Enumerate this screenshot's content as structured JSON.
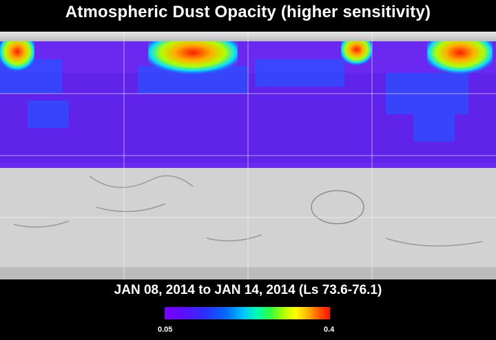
{
  "title": "Atmospheric Dust Opacity (higher sensitivity)",
  "date_range": "JAN 08, 2014 to JAN 14, 2014 (Ls 73.6-76.1)",
  "colorbar": {
    "min_label": "0.05",
    "max_label": "0.4",
    "colors": [
      "#7a00ff",
      "#2a30ff",
      "#00c8ff",
      "#30ff40",
      "#ffff00",
      "#ff1000"
    ]
  },
  "map": {
    "basemap_color": "#d2d2d2",
    "grid": true
  }
}
